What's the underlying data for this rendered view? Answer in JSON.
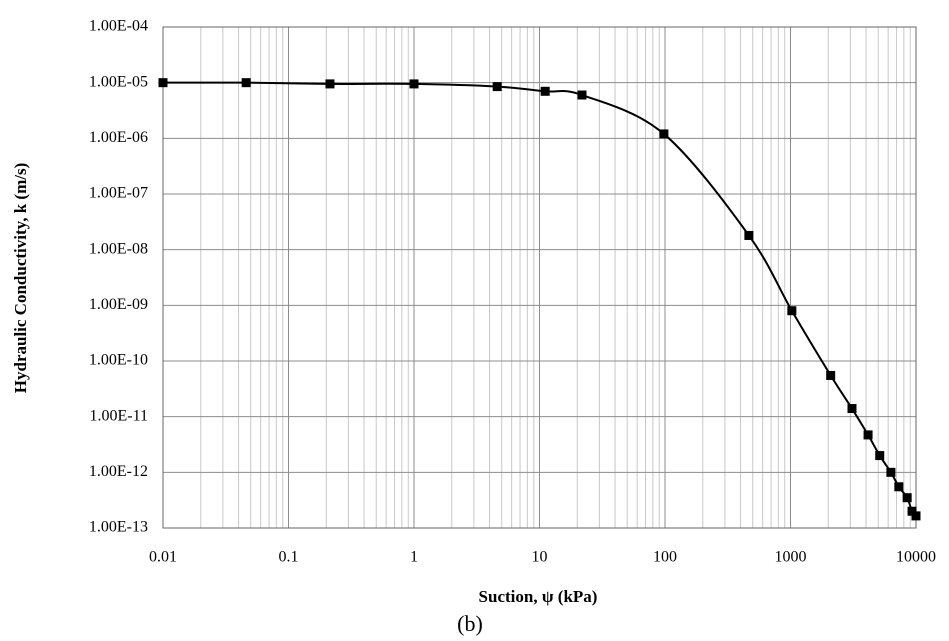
{
  "chart_data": {
    "type": "line",
    "x_label": "Suction, ψ (kPa)",
    "y_label": "Hydraulic Conductivity, k (m/s)",
    "caption": "(b)",
    "xscale": "log",
    "yscale": "log",
    "grid": true,
    "xlim": [
      0.01,
      10000
    ],
    "ylim": [
      1e-13,
      0.0001
    ],
    "xticks": [
      0.01,
      0.1,
      1,
      10,
      100,
      1000,
      10000
    ],
    "yticks": [
      {
        "value": 1e-13,
        "label": "1.00E-13"
      },
      {
        "value": 1e-12,
        "label": "1.00E-12"
      },
      {
        "value": 1e-11,
        "label": "1.00E-11"
      },
      {
        "value": 1e-10,
        "label": "1.00E-10"
      },
      {
        "value": 1e-09,
        "label": "1.00E-09"
      },
      {
        "value": 1e-08,
        "label": "1.00E-08"
      },
      {
        "value": 1e-07,
        "label": "1.00E-07"
      },
      {
        "value": 1e-06,
        "label": "1.00E-06"
      },
      {
        "value": 1e-05,
        "label": "1.00E-05"
      },
      {
        "value": 0.0001,
        "label": "1.00E-04"
      }
    ],
    "series": [
      {
        "color": "#000000",
        "x": [
          0.01,
          0.046,
          0.214,
          1,
          4.6,
          11.1,
          21.8,
          98,
          466,
          1025,
          2090,
          3090,
          4150,
          5140,
          6310,
          7300,
          8500,
          9300,
          10000
        ],
        "values": [
          1e-05,
          1e-05,
          9.5e-06,
          9.5e-06,
          8.5e-06,
          7e-06,
          6e-06,
          1.2e-06,
          1.8e-08,
          8e-10,
          5.5e-11,
          1.4e-11,
          4.7e-12,
          2e-12,
          1e-12,
          5.5e-13,
          3.5e-13,
          2e-13,
          1.65e-13
        ]
      }
    ]
  }
}
